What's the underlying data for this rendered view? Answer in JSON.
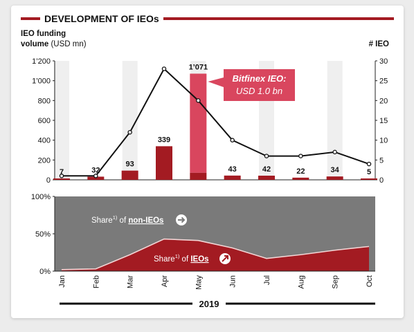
{
  "title": "DEVELOPMENT OF IEOs",
  "colors": {
    "accent": "#a31b22",
    "bitfinex": "#d9465e",
    "band": "#efefef",
    "non_ieo_area": "#7a7a7a",
    "line": "#111111"
  },
  "chart_data": [
    {
      "type": "bar",
      "title": "DEVELOPMENT OF IEOs",
      "ylabel_left_line1": "IEO funding",
      "ylabel_left_line2_bold": "volume",
      "ylabel_left_line2_rest": " (USD mn)",
      "ylabel_right": "# IEO",
      "categories": [
        "Jan",
        "Feb",
        "Mar",
        "Apr",
        "May",
        "Jun",
        "Jul",
        "Aug",
        "Sep",
        "Oct"
      ],
      "value_labels": [
        "7",
        "32",
        "93",
        "339",
        "1’071",
        "43",
        "42",
        "22",
        "34",
        "5"
      ],
      "series": [
        {
          "name": "IEO funding volume",
          "axis": "left",
          "values": [
            7,
            32,
            93,
            339,
            1071,
            43,
            42,
            22,
            34,
            5
          ]
        },
        {
          "name": "# IEO",
          "axis": "right",
          "type": "line",
          "values": [
            1,
            1,
            12,
            28,
            20,
            10,
            6,
            6,
            7,
            4
          ]
        }
      ],
      "bitfinex_portion": {
        "category": "May",
        "value": 1000
      },
      "annotation": {
        "line1": "Bitfinex IEO:",
        "line2": "USD 1.0 bn"
      },
      "ylim_left": [
        0,
        1200
      ],
      "yticks_left": [
        "0",
        "200",
        "400",
        "600",
        "800",
        "1’000",
        "1’200"
      ],
      "ylim_right": [
        0,
        30
      ],
      "yticks_right": [
        "0",
        "5",
        "10",
        "15",
        "20",
        "25",
        "30"
      ],
      "grid": false,
      "alternating_bands": true
    },
    {
      "type": "area",
      "categories": [
        "Jan",
        "Feb",
        "Mar",
        "Apr",
        "May",
        "Jun",
        "Jul",
        "Aug",
        "Sep",
        "Oct"
      ],
      "ylim": [
        0,
        100
      ],
      "yticks": [
        "0%",
        "50%",
        "100%"
      ],
      "series": [
        {
          "name": "IEOs",
          "values": [
            2,
            3,
            22,
            43,
            41,
            31,
            17,
            22,
            28,
            33
          ]
        }
      ],
      "labels": {
        "non_ieo": {
          "prefix": "Share",
          "sup": "1)",
          "mid": " of ",
          "key": "non-IEOs"
        },
        "ieo": {
          "prefix": "Share",
          "sup": "1)",
          "mid": " of ",
          "key": "IEOs"
        }
      }
    }
  ],
  "year_label": "2019"
}
